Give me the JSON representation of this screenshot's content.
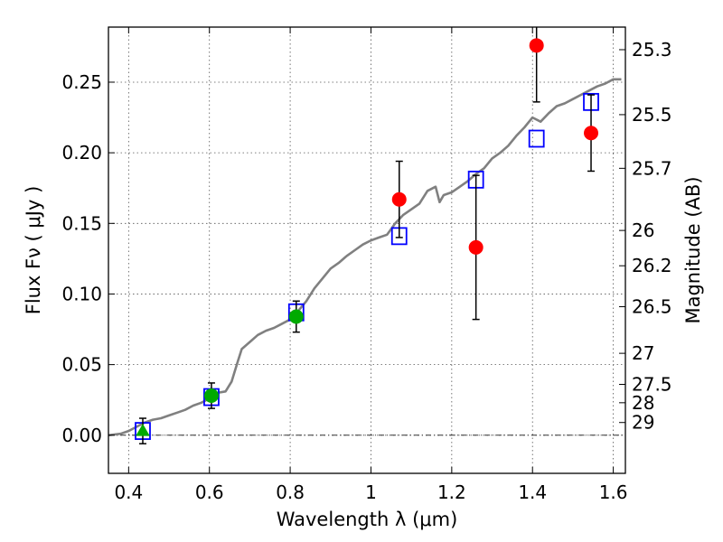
{
  "chart_data": {
    "type": "scatter",
    "xlabel": "Wavelength  λ (μm)",
    "ylabel": "Flux  Fν  ( μJy )",
    "ylabel_right": "Magnitude (AB)",
    "xlim": [
      0.35,
      1.63
    ],
    "ylim": [
      -0.027,
      0.289
    ],
    "xticks": [
      {
        "value": 0.4,
        "label": "0.4"
      },
      {
        "value": 0.6,
        "label": "0.6"
      },
      {
        "value": 0.8,
        "label": "0.8"
      },
      {
        "value": 1.0,
        "label": "1"
      },
      {
        "value": 1.2,
        "label": "1.2"
      },
      {
        "value": 1.4,
        "label": "1.4"
      },
      {
        "value": 1.6,
        "label": "1.6"
      }
    ],
    "yticks": [
      {
        "value": 0.0,
        "label": "0.00"
      },
      {
        "value": 0.05,
        "label": "0.05"
      },
      {
        "value": 0.1,
        "label": "0.10"
      },
      {
        "value": 0.15,
        "label": "0.15"
      },
      {
        "value": 0.2,
        "label": "0.20"
      },
      {
        "value": 0.25,
        "label": "0.25"
      }
    ],
    "mag_ticks": [
      {
        "value": 0.273,
        "label": "25.3"
      },
      {
        "value": 0.227,
        "label": "25.5"
      },
      {
        "value": 0.189,
        "label": "25.7"
      },
      {
        "value": 0.145,
        "label": "26"
      },
      {
        "value": 0.12,
        "label": "26.2"
      },
      {
        "value": 0.091,
        "label": "26.5"
      },
      {
        "value": 0.058,
        "label": "27"
      },
      {
        "value": 0.036,
        "label": "27.5"
      },
      {
        "value": 0.023,
        "label": "28"
      },
      {
        "value": 0.009,
        "label": "29"
      }
    ],
    "grid": true,
    "zero_line": true,
    "colors": {
      "model": "#808080",
      "model_points": "#0000ff",
      "detections": "#ff0000",
      "optical": "#00aa00",
      "errorbar": "#000000"
    },
    "series": [
      {
        "kind": "line",
        "x": [
          0.35,
          0.38,
          0.4,
          0.42,
          0.44,
          0.46,
          0.48,
          0.5,
          0.52,
          0.54,
          0.56,
          0.58,
          0.6,
          0.62,
          0.64,
          0.655,
          0.67,
          0.68,
          0.7,
          0.72,
          0.74,
          0.76,
          0.78,
          0.8,
          0.82,
          0.84,
          0.86,
          0.88,
          0.9,
          0.92,
          0.94,
          0.96,
          0.98,
          1.0,
          1.02,
          1.04,
          1.06,
          1.08,
          1.1,
          1.12,
          1.14,
          1.16,
          1.17,
          1.18,
          1.2,
          1.22,
          1.24,
          1.26,
          1.28,
          1.3,
          1.32,
          1.34,
          1.36,
          1.38,
          1.4,
          1.42,
          1.44,
          1.46,
          1.48,
          1.5,
          1.52,
          1.54,
          1.56,
          1.58,
          1.6,
          1.62
        ],
        "y": [
          0.0,
          0.001,
          0.003,
          0.006,
          0.009,
          0.011,
          0.012,
          0.014,
          0.016,
          0.018,
          0.021,
          0.023,
          0.026,
          0.03,
          0.031,
          0.038,
          0.052,
          0.061,
          0.066,
          0.071,
          0.074,
          0.076,
          0.079,
          0.082,
          0.088,
          0.095,
          0.104,
          0.111,
          0.118,
          0.122,
          0.127,
          0.131,
          0.135,
          0.138,
          0.14,
          0.142,
          0.15,
          0.156,
          0.16,
          0.164,
          0.173,
          0.176,
          0.165,
          0.17,
          0.172,
          0.176,
          0.18,
          0.185,
          0.189,
          0.196,
          0.2,
          0.205,
          0.212,
          0.218,
          0.225,
          0.222,
          0.228,
          0.233,
          0.235,
          0.238,
          0.241,
          0.244,
          0.247,
          0.249,
          0.252,
          0.252
        ]
      },
      {
        "kind": "open_square",
        "x": [
          0.435,
          0.605,
          0.815,
          1.07,
          1.26,
          1.41,
          1.545
        ],
        "y": [
          0.003,
          0.027,
          0.087,
          0.141,
          0.181,
          0.21,
          0.236
        ]
      },
      {
        "kind": "filled_circle_error",
        "x": [
          1.07,
          1.26,
          1.41,
          1.545
        ],
        "y": [
          0.167,
          0.133,
          0.276,
          0.214
        ],
        "err": [
          0.027,
          0.051,
          0.04,
          0.027
        ]
      },
      {
        "kind": "filled_circle_error",
        "x": [
          0.605,
          0.815
        ],
        "y": [
          0.028,
          0.084
        ],
        "err": [
          0.009,
          0.011
        ]
      },
      {
        "kind": "triangle_error",
        "x": [
          0.435
        ],
        "y": [
          0.003
        ],
        "err": [
          0.009
        ]
      }
    ]
  }
}
